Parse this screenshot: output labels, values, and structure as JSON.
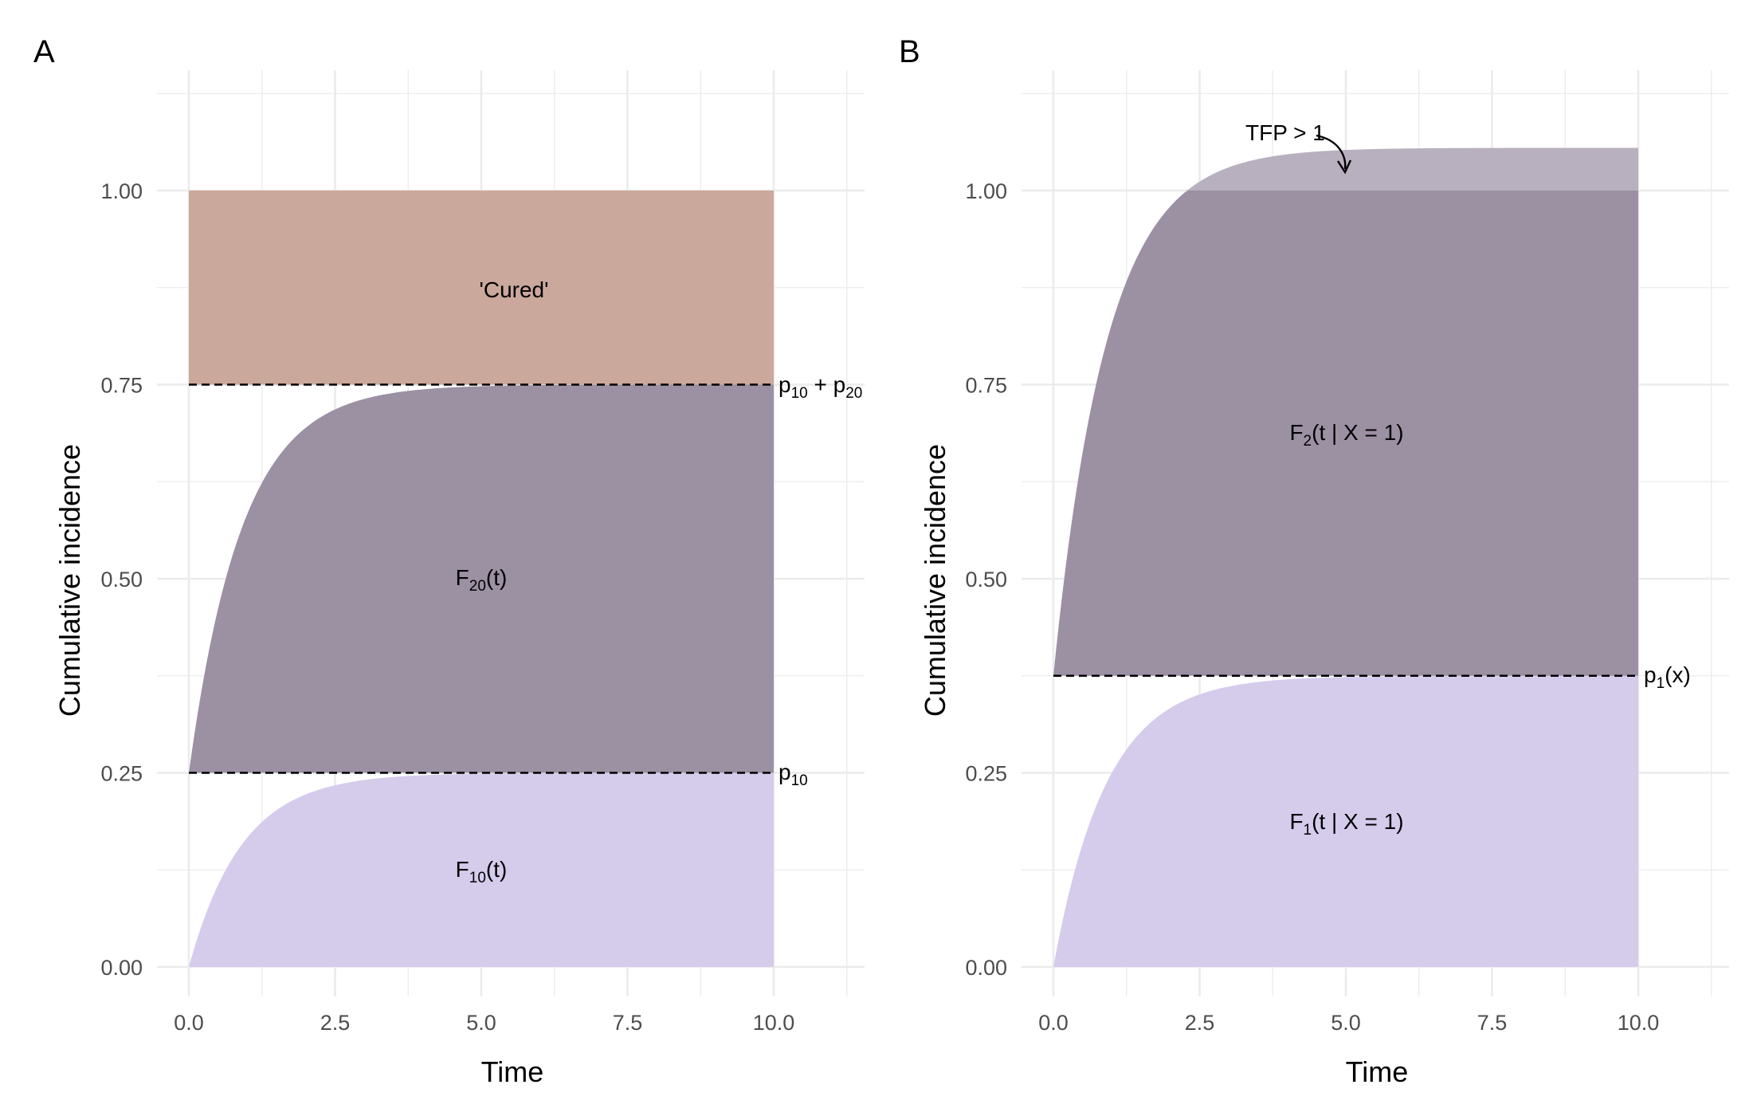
{
  "chart_data": [
    {
      "panel": "A",
      "type": "area",
      "xlabel": "Time",
      "ylabel": "Cumulative incidence",
      "xlim": [
        0,
        10
      ],
      "ylim": [
        0,
        1.0
      ],
      "x_ticks": [
        "0.0",
        "2.5",
        "5.0",
        "7.5",
        "10.0"
      ],
      "y_ticks": [
        "0.00",
        "0.25",
        "0.50",
        "0.75",
        "1.00"
      ],
      "grid": true,
      "p10": 0.25,
      "p20": 0.5,
      "curve_rate": 1.1,
      "regions": [
        {
          "label": "F10(t)",
          "lower": 0,
          "upper": "p10*(1-exp(-rate*t))",
          "color": "#D5CCEC"
        },
        {
          "label": "F20(t)",
          "lower": "p10",
          "upper": "p10+p20*(1-exp(-rate*t))",
          "color": "#9C90A3"
        },
        {
          "label": "'Cured'",
          "lower": 0.75,
          "upper": 1.0,
          "color": "#CBA89C"
        }
      ],
      "hlines": [
        {
          "y": 0.25,
          "label": "p10",
          "style": "dashed"
        },
        {
          "y": 0.75,
          "label": "p10 + p20",
          "style": "dashed"
        }
      ],
      "annotations": [
        {
          "text": "'Cured'",
          "x": 5.0,
          "y": 0.875
        },
        {
          "text": "F20(t)",
          "x": 5.0,
          "y": 0.5
        },
        {
          "text": "F10(t)",
          "x": 5.0,
          "y": 0.125
        }
      ]
    },
    {
      "panel": "B",
      "type": "area",
      "xlabel": "Time",
      "ylabel": "Cumulative incidence",
      "xlim": [
        0,
        10
      ],
      "ylim": [
        0,
        1.06
      ],
      "x_ticks": [
        "0.0",
        "2.5",
        "5.0",
        "7.5",
        "10.0"
      ],
      "y_ticks": [
        "0.00",
        "0.25",
        "0.50",
        "0.75",
        "1.00"
      ],
      "grid": true,
      "p1": 0.375,
      "p2": 0.68,
      "curve_rate": 1.1,
      "regions": [
        {
          "label": "F1(t | X = 1)",
          "lower": 0,
          "upper": "p1*(1-exp(-rate*t))",
          "color": "#D5CCEC"
        },
        {
          "label": "F2(t | X = 1)",
          "lower": "p1",
          "upper": "p1+p2*(1-exp(-rate*t))",
          "color": "#9C90A3"
        }
      ],
      "excess_region": {
        "above": 1.0,
        "color": "#B8B0BE"
      },
      "hlines": [
        {
          "y": 0.375,
          "label": "p1(x)",
          "style": "dashed"
        }
      ],
      "annotations": [
        {
          "text": "F2(t | X = 1)",
          "x": 5.0,
          "y": 0.69
        },
        {
          "text": "F1(t | X = 1)",
          "x": 5.0,
          "y": 0.19
        },
        {
          "text": "TFP > 1",
          "x": 3.8,
          "y": 1.07,
          "arrow_to": [
            5.0,
            1.025
          ]
        }
      ]
    }
  ],
  "labels": {
    "panel_a_tag": "A",
    "panel_b_tag": "B",
    "cured": "'Cured'",
    "tfp": "TFP > 1",
    "F_letter": "F",
    "p_letter": "p",
    "t_arg": "(t)",
    "sub_10": "10",
    "sub_20": "20",
    "sub_1": "1",
    "sub_2": "2",
    "plus": " + ",
    "cond_arg": "(t | X = 1)",
    "x_arg": "(x)"
  }
}
